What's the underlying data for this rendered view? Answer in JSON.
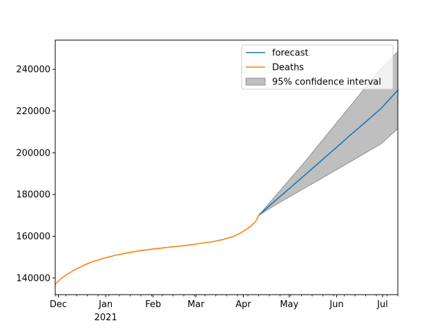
{
  "chart_data": {
    "type": "line",
    "title": "",
    "xlabel": "",
    "ylabel": "",
    "x_range": [
      "2020-11-29",
      "2021-07-11"
    ],
    "ylim": [
      132000,
      254000
    ],
    "grid": false,
    "legend_position": "top-right",
    "y_ticks": [
      140000,
      160000,
      180000,
      200000,
      220000,
      240000
    ],
    "x_ticks": [
      {
        "date": "2020-12-01",
        "label": "Dec",
        "sublabel": ""
      },
      {
        "date": "2021-01-01",
        "label": "Jan",
        "sublabel": "2021"
      },
      {
        "date": "2021-02-01",
        "label": "Feb",
        "sublabel": ""
      },
      {
        "date": "2021-03-01",
        "label": "Mar",
        "sublabel": ""
      },
      {
        "date": "2021-04-01",
        "label": "Apr",
        "sublabel": ""
      },
      {
        "date": "2021-05-01",
        "label": "May",
        "sublabel": ""
      },
      {
        "date": "2021-06-01",
        "label": "Jun",
        "sublabel": ""
      },
      {
        "date": "2021-07-01",
        "label": "Jul",
        "sublabel": ""
      }
    ],
    "series": [
      {
        "name": "Deaths",
        "color": "#ff7f0e",
        "x": [
          "2020-11-29",
          "2020-12-03",
          "2020-12-08",
          "2020-12-13",
          "2020-12-18",
          "2020-12-23",
          "2020-12-28",
          "2021-01-01",
          "2021-01-08",
          "2021-01-15",
          "2021-01-22",
          "2021-01-29",
          "2021-02-05",
          "2021-02-12",
          "2021-02-19",
          "2021-02-26",
          "2021-03-05",
          "2021-03-12",
          "2021-03-19",
          "2021-03-26",
          "2021-03-31",
          "2021-04-05",
          "2021-04-09",
          "2021-04-11"
        ],
        "values": [
          137000,
          139800,
          142300,
          144400,
          146200,
          147700,
          148800,
          149700,
          151000,
          152000,
          152900,
          153600,
          154200,
          154800,
          155300,
          155900,
          156700,
          157400,
          158500,
          160000,
          161900,
          164300,
          167000,
          170000
        ]
      },
      {
        "name": "forecast",
        "color": "#1f77b4",
        "x": [
          "2021-04-11",
          "2021-04-21",
          "2021-05-01",
          "2021-05-11",
          "2021-05-21",
          "2021-05-31",
          "2021-06-10",
          "2021-06-20",
          "2021-06-30",
          "2021-07-11"
        ],
        "values": [
          170000,
          176500,
          182800,
          189200,
          195600,
          202000,
          208500,
          214800,
          221200,
          230000
        ]
      }
    ],
    "confidence_interval": {
      "name": "95% confidence interval",
      "color": "#808080",
      "x": [
        "2021-04-11",
        "2021-04-21",
        "2021-05-01",
        "2021-05-11",
        "2021-05-21",
        "2021-05-31",
        "2021-06-10",
        "2021-06-20",
        "2021-06-30",
        "2021-07-11"
      ],
      "lower": [
        170000,
        174500,
        178800,
        183000,
        187200,
        191500,
        195700,
        200000,
        204200,
        211500
      ],
      "upper": [
        170000,
        178500,
        187000,
        195500,
        204500,
        213500,
        222500,
        231500,
        240500,
        248500
      ]
    }
  }
}
